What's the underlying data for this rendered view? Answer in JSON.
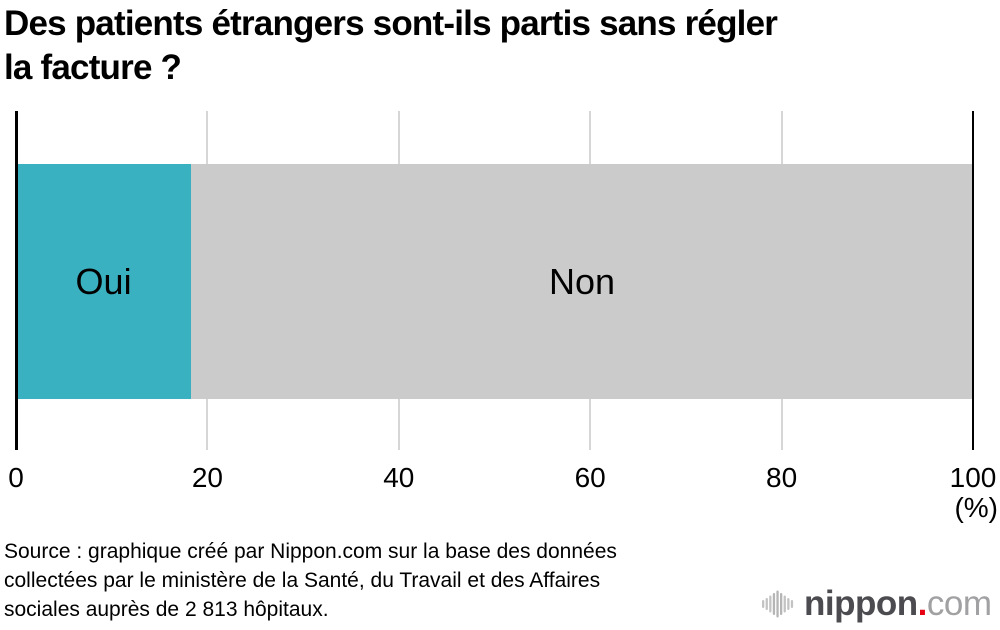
{
  "chart_data": {
    "type": "bar",
    "orientation": "horizontal",
    "stacked": true,
    "title": "Des patients étrangers sont-ils partis sans régler\nla facture ?",
    "segments": [
      {
        "label": "Oui",
        "value": 18.3,
        "color": "#39b1c0"
      },
      {
        "label": "Non",
        "value": 81.7,
        "color": "#cbcbcb"
      }
    ],
    "xlim": [
      0,
      100
    ],
    "xticks": [
      0,
      20,
      40,
      60,
      80,
      100
    ],
    "x_unit_label": "(%)",
    "grid": true,
    "legend_position": "none",
    "gridline_color": "#d6d6d6",
    "axis_color": "#000000"
  },
  "source": {
    "text": "Source : graphique créé par Nippon.com sur la base des données\ncollectées par le ministère de la Santé, du Travail et des Affaires\nsociales auprès de 2 813 hôpitaux."
  },
  "logo": {
    "icon": "soundwave-icon",
    "name": "nippon",
    "dot": ".",
    "tld": "com",
    "name_color": "#4b4b50",
    "dot_color": "#e60012",
    "tld_color": "#a1a1a3",
    "wave_color": "#c3c3c4",
    "wave_color_center": "#b5b5b6"
  }
}
